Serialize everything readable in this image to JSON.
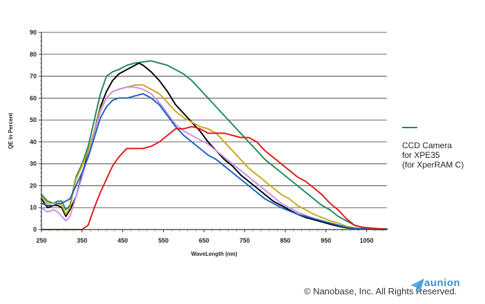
{
  "chart_data": {
    "type": "line",
    "xlabel": "WaveLength (nm)",
    "ylabel": "QE in Percent",
    "xlim": [
      250,
      1100
    ],
    "ylim": [
      0,
      90
    ],
    "x_ticks": [
      "250",
      "350",
      "450",
      "550",
      "650",
      "750",
      "850",
      "950",
      "1050"
    ],
    "y_ticks": [
      "0",
      "10",
      "20",
      "30",
      "40",
      "50",
      "60",
      "70",
      "80",
      "90"
    ],
    "grid": "horizontal",
    "series": [
      {
        "color": "#1e8a5a",
        "x": [
          250,
          265,
          280,
          290,
          300,
          310,
          320,
          335,
          350,
          365,
          380,
          395,
          410,
          425,
          440,
          460,
          480,
          500,
          520,
          540,
          560,
          580,
          600,
          620,
          640,
          660,
          680,
          700,
          720,
          740,
          760,
          780,
          800,
          820,
          840,
          860,
          880,
          900,
          920,
          940,
          960,
          980,
          1000,
          1020,
          1040,
          1060,
          1080,
          1100
        ],
        "y": [
          16,
          13,
          12,
          13,
          13,
          9,
          11,
          24,
          30,
          38,
          50,
          62,
          70,
          72,
          73,
          75,
          76,
          76.5,
          77,
          76,
          75,
          73,
          71,
          68,
          64,
          60,
          56,
          52,
          48,
          44,
          40,
          36,
          32,
          29,
          26,
          23,
          20,
          17,
          14,
          11,
          9,
          6,
          4,
          2,
          1,
          0.7,
          0.4,
          0.3
        ]
      },
      {
        "color": "#000000",
        "x": [
          250,
          265,
          280,
          290,
          300,
          310,
          320,
          335,
          350,
          365,
          380,
          395,
          410,
          425,
          440,
          460,
          480,
          490,
          500,
          520,
          540,
          560,
          580,
          600,
          620,
          640,
          660,
          680,
          700,
          720,
          740,
          760,
          780,
          800,
          820,
          840,
          860,
          880,
          900,
          920,
          940,
          960,
          980,
          1000,
          1020,
          1040,
          1060,
          1080,
          1100
        ],
        "y": [
          14,
          10,
          11,
          11,
          10,
          6,
          9,
          15,
          25,
          35,
          45,
          56,
          63,
          68,
          71,
          73,
          75,
          76,
          75,
          72,
          68,
          63,
          57,
          53,
          49,
          45,
          40,
          36,
          32,
          29,
          25,
          22,
          19,
          16,
          13,
          11,
          9,
          7,
          5.5,
          4.5,
          3.5,
          2.5,
          1.5,
          0.8,
          0.4,
          0.3,
          0.2,
          0.1,
          0.1
        ]
      },
      {
        "color": "#c8a818",
        "x": [
          250,
          265,
          280,
          290,
          300,
          310,
          320,
          335,
          350,
          365,
          380,
          395,
          410,
          425,
          440,
          460,
          480,
          500,
          520,
          540,
          560,
          580,
          600,
          620,
          640,
          660,
          680,
          700,
          720,
          740,
          760,
          780,
          800,
          820,
          840,
          860,
          880,
          900,
          920,
          940,
          960,
          980,
          1000,
          1020,
          1040,
          1060,
          1080,
          1100
        ],
        "y": [
          15,
          12,
          12,
          12,
          11,
          7,
          10,
          23,
          29,
          36,
          45,
          55,
          60,
          63,
          64,
          65,
          66,
          66,
          64,
          62,
          58,
          54,
          51,
          49,
          47,
          46,
          44,
          40,
          36,
          32,
          28,
          25,
          22,
          19,
          16,
          14,
          11,
          9,
          7,
          5.5,
          4,
          3,
          1.5,
          0.8,
          0.4,
          0.3,
          0.2,
          0.1
        ]
      },
      {
        "color": "#c890e8",
        "x": [
          250,
          265,
          280,
          290,
          300,
          310,
          320,
          335,
          350,
          365,
          380,
          395,
          410,
          425,
          440,
          460,
          480,
          500,
          520,
          540,
          560,
          580,
          600,
          620,
          640,
          660,
          680,
          700,
          720,
          740,
          760,
          780,
          800,
          820,
          840,
          860,
          880,
          900,
          920,
          940,
          960,
          980,
          1000,
          1020,
          1040,
          1060,
          1080,
          1100
        ],
        "y": [
          10,
          8,
          9,
          8,
          6,
          4,
          6,
          15,
          24,
          34,
          44,
          54,
          60,
          63,
          64,
          65,
          65,
          64,
          62,
          58,
          53,
          48,
          45,
          43,
          41,
          39,
          36,
          33,
          30,
          27,
          24,
          21,
          18,
          15,
          12,
          10,
          8,
          6.5,
          5,
          4,
          3,
          2,
          1,
          0.5,
          0.3,
          0.2,
          0.1,
          0.1
        ]
      },
      {
        "color": "#1a5fc0",
        "x": [
          250,
          265,
          280,
          290,
          300,
          310,
          320,
          335,
          350,
          365,
          380,
          395,
          410,
          425,
          440,
          460,
          480,
          500,
          520,
          540,
          560,
          580,
          600,
          620,
          640,
          660,
          680,
          700,
          720,
          740,
          760,
          780,
          800,
          820,
          840,
          860,
          880,
          900,
          920,
          940,
          960,
          980,
          1000,
          1020,
          1040,
          1060,
          1080,
          1100
        ],
        "y": [
          12,
          11,
          11,
          12,
          12,
          13,
          14,
          20,
          26,
          33,
          42,
          51,
          56,
          59,
          60,
          60,
          61,
          62,
          60,
          57,
          52,
          47,
          43,
          40,
          37,
          34,
          32,
          29,
          26,
          23,
          20,
          17,
          14,
          12,
          10,
          8.5,
          7,
          6,
          5,
          4,
          3,
          2,
          1,
          0.5,
          0.3,
          0.2,
          0.1,
          0.1
        ]
      },
      {
        "color": "#e01818",
        "x": [
          250,
          300,
          350,
          365,
          380,
          395,
          410,
          425,
          440,
          460,
          480,
          500,
          520,
          540,
          560,
          580,
          600,
          620,
          640,
          660,
          680,
          700,
          720,
          740,
          760,
          780,
          800,
          820,
          840,
          860,
          880,
          900,
          920,
          940,
          960,
          980,
          1000,
          1020,
          1040,
          1060,
          1080,
          1100
        ],
        "y": [
          0,
          0,
          0,
          2,
          10,
          17,
          23,
          29,
          33,
          37,
          37,
          37,
          38,
          40,
          43,
          46,
          46,
          47,
          46,
          44,
          44,
          44,
          43,
          42,
          42,
          40,
          36,
          33,
          30,
          27,
          24,
          22,
          19,
          16,
          12,
          9,
          5,
          2,
          1,
          0.5,
          0.3,
          0.2
        ]
      }
    ]
  },
  "legend": {
    "color": "#1e8a5a",
    "lines": [
      "CCD Camera",
      "for XPE35",
      "(for XperRAM C)"
    ]
  },
  "footer": {
    "copyright": "© Nanobase, Inc. All Rights Reserved."
  },
  "logo": {
    "text": "aunion"
  }
}
